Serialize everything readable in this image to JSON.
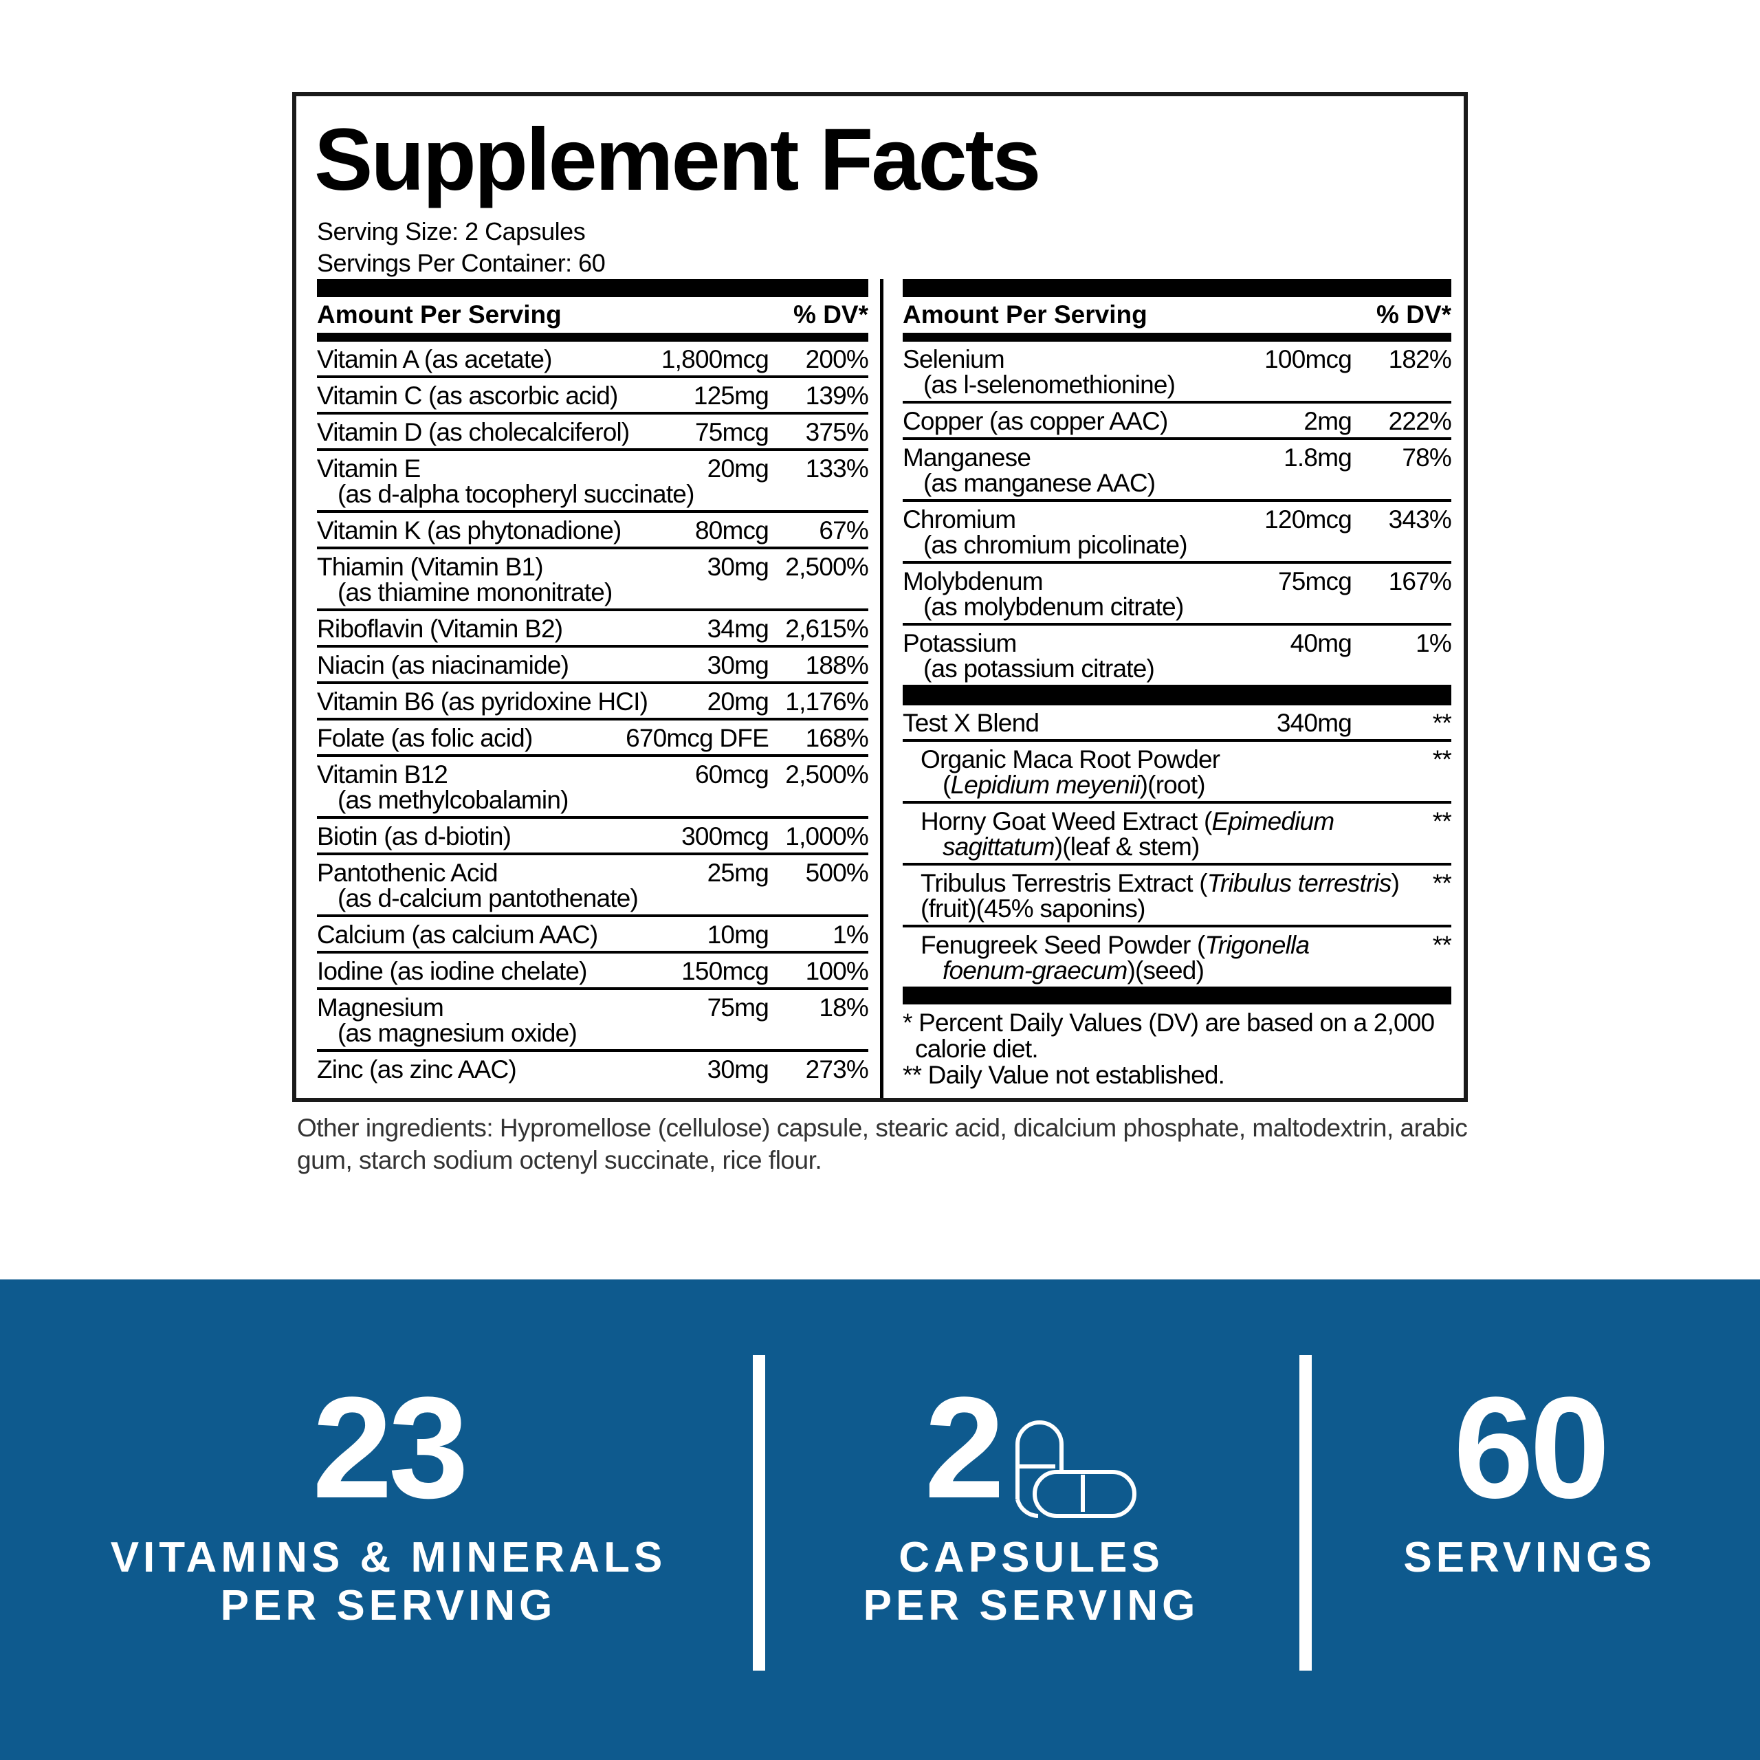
{
  "title": "Supplement Facts",
  "serving_size": "Serving Size: 2 Capsules",
  "servings_per_container": "Servings Per Container: 60",
  "header": {
    "amount": "Amount Per Serving",
    "dv": "% DV*"
  },
  "left_rows": [
    {
      "name": "Vitamin A (as acetate)",
      "amount": "1,800mcg",
      "dv": "200%"
    },
    {
      "name": "Vitamin C (as ascorbic acid)",
      "amount": "125mg",
      "dv": "139%"
    },
    {
      "name": "Vitamin D (as cholecalciferol)",
      "amount": "75mcg",
      "dv": "375%"
    },
    {
      "name": "Vitamin E",
      "sub": "(as d-alpha tocopheryl succinate)",
      "amount": "20mg",
      "dv": "133%"
    },
    {
      "name": "Vitamin K (as phytonadione)",
      "amount": "80mcg",
      "dv": "67%"
    },
    {
      "name": "Thiamin (Vitamin B1)",
      "sub": "(as thiamine mononitrate)",
      "amount": "30mg",
      "dv": "2,500%"
    },
    {
      "name": "Riboflavin (Vitamin B2)",
      "amount": "34mg",
      "dv": "2,615%"
    },
    {
      "name": "Niacin (as niacinamide)",
      "amount": "30mg",
      "dv": "188%"
    },
    {
      "name": "Vitamin B6 (as pyridoxine HCI)",
      "amount": "20mg",
      "dv": "1,176%"
    },
    {
      "name": "Folate (as folic acid)",
      "amount": "670mcg DFE",
      "dv": "168%"
    },
    {
      "name": "Vitamin B12",
      "sub": "(as methylcobalamin)",
      "amount": "60mcg",
      "dv": "2,500%"
    },
    {
      "name": "Biotin (as d-biotin)",
      "amount": "300mcg",
      "dv": "1,000%"
    },
    {
      "name": "Pantothenic Acid",
      "sub": "(as d-calcium pantothenate)",
      "amount": "25mg",
      "dv": "500%"
    },
    {
      "name": "Calcium (as calcium AAC)",
      "amount": "10mg",
      "dv": "1%"
    },
    {
      "name": "Iodine (as iodine chelate)",
      "amount": "150mcg",
      "dv": "100%"
    },
    {
      "name": "Magnesium",
      "sub": "(as magnesium oxide)",
      "amount": "75mg",
      "dv": "18%"
    },
    {
      "name": "Zinc (as zinc AAC)",
      "amount": "30mg",
      "dv": "273%"
    }
  ],
  "right_rows": [
    {
      "name": "Selenium",
      "sub": "(as l-selenomethionine)",
      "amount": "100mcg",
      "dv": "182%"
    },
    {
      "name": "Copper (as copper AAC)",
      "amount": "2mg",
      "dv": "222%"
    },
    {
      "name": "Manganese",
      "sub": "(as manganese AAC)",
      "amount": "1.8mg",
      "dv": "78%"
    },
    {
      "name": "Chromium",
      "sub": "(as chromium picolinate)",
      "amount": "120mcg",
      "dv": "343%"
    },
    {
      "name": "Molybdenum",
      "sub": "(as molybdenum citrate)",
      "amount": "75mcg",
      "dv": "167%"
    },
    {
      "name": "Potassium",
      "sub": "(as potassium citrate)",
      "amount": "40mg",
      "dv": "1%"
    }
  ],
  "blend": {
    "name": "Test X Blend",
    "amount": "340mg",
    "dv": "**",
    "items": [
      {
        "line1": [
          {
            "t": "Organic Maca Root Powder"
          }
        ],
        "line2": [
          {
            "t": "("
          },
          {
            "t": "Lepidium meyenii",
            "i": true
          },
          {
            "t": ")(root)"
          }
        ],
        "dv": "**"
      },
      {
        "line1": [
          {
            "t": "Horny Goat Weed Extract ("
          },
          {
            "t": "Epimedium",
            "i": true
          }
        ],
        "line2": [
          {
            "t": "sagittatum",
            "i": true
          },
          {
            "t": ")(leaf & stem)"
          }
        ],
        "dv": "**"
      },
      {
        "line1": [
          {
            "t": "Tribulus Terrestris Extract ("
          },
          {
            "t": "Tribulus terrestris",
            "i": true
          },
          {
            "t": ")"
          }
        ],
        "line2": [
          {
            "t": "(fruit)(45% saponins)"
          }
        ],
        "dv": "**",
        "flush": true
      },
      {
        "line1": [
          {
            "t": "Fenugreek Seed Powder ("
          },
          {
            "t": "Trigonella",
            "i": true
          }
        ],
        "line2": [
          {
            "t": "foenum-graecum",
            "i": true
          },
          {
            "t": ")(seed)"
          }
        ],
        "dv": "**"
      }
    ]
  },
  "footnotes": [
    "* Percent Daily Values (DV) are based on a 2,000",
    "calorie diet.",
    "** Daily Value not established."
  ],
  "other_ingredients": "Other ingredients: Hypromellose (cellulose) capsule, stearic acid, dicalcium phosphate, maltodextrin, arabic gum, starch sodium octenyl succinate, rice flour.",
  "stats": [
    {
      "value": "23",
      "label1": "VITAMINS & MINERALS",
      "label2": "PER SERVING"
    },
    {
      "value": "2",
      "label1": "CAPSULES",
      "label2": "PER SERVING",
      "icon": "capsules-icon"
    },
    {
      "value": "60",
      "label1": "SERVINGS"
    }
  ],
  "colors": {
    "band": "#0e5a8e",
    "text": "#000000"
  }
}
